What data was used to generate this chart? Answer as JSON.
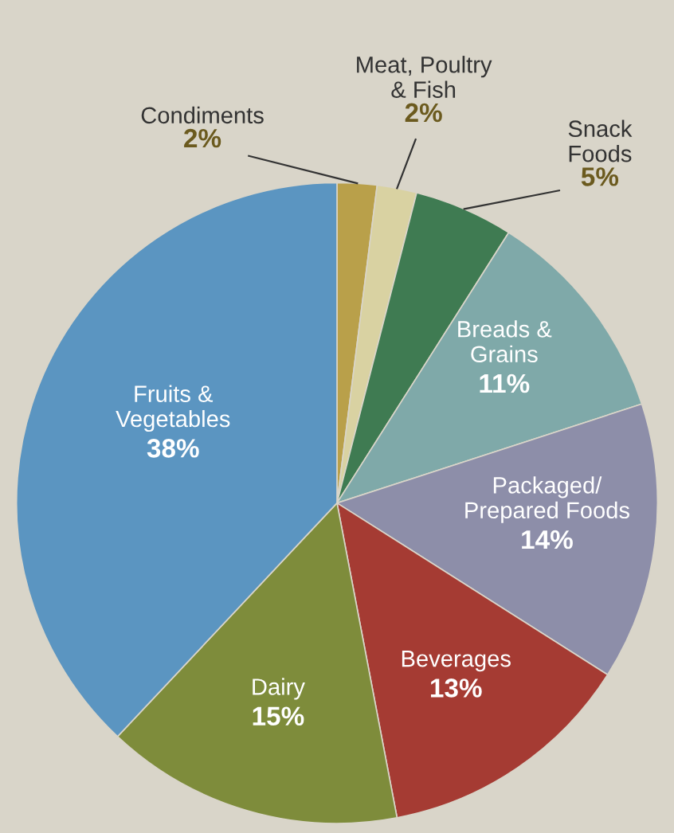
{
  "chart_data": {
    "type": "pie",
    "categories": [
      "Condiments",
      "Meat, Poultry\n& Fish",
      "Snack\nFoods",
      "Breads &\nGrains",
      "Packaged/\nPrepared Foods",
      "Beverages",
      "Dairy",
      "Fruits &\nVegetables"
    ],
    "values": [
      2,
      2,
      5,
      11,
      14,
      13,
      15,
      38
    ],
    "value_labels": [
      "2%",
      "2%",
      "5%",
      "11%",
      "14%",
      "13%",
      "15%",
      "38%"
    ],
    "colors": [
      "#b9a04a",
      "#d9d2a2",
      "#3f7b52",
      "#7fa9a9",
      "#8d8ea9",
      "#a53b33",
      "#7e8c3b",
      "#5b95c1"
    ]
  }
}
